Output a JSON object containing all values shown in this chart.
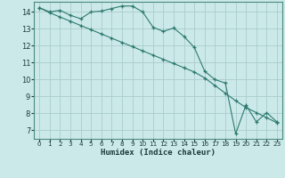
{
  "xlabel": "Humidex (Indice chaleur)",
  "background_color": "#cce9e9",
  "grid_color": "#aacccc",
  "line_color": "#2d7a6e",
  "xlim": [
    -0.5,
    23.5
  ],
  "ylim": [
    6.5,
    14.6
  ],
  "xticks": [
    0,
    1,
    2,
    3,
    4,
    5,
    6,
    7,
    8,
    9,
    10,
    11,
    12,
    13,
    14,
    15,
    16,
    17,
    18,
    19,
    20,
    21,
    22,
    23
  ],
  "yticks": [
    7,
    8,
    9,
    10,
    11,
    12,
    13,
    14
  ],
  "line1_x": [
    0,
    1,
    2,
    3,
    4,
    5,
    6,
    7,
    8,
    9,
    10,
    11,
    12,
    13,
    14,
    15,
    16,
    17,
    18,
    19,
    20,
    21,
    22,
    23
  ],
  "line1_y": [
    14.25,
    14.0,
    14.1,
    13.8,
    13.6,
    14.0,
    14.05,
    14.2,
    14.35,
    14.35,
    14.0,
    13.1,
    12.85,
    13.05,
    12.55,
    11.9,
    10.5,
    10.0,
    9.8,
    6.8,
    8.5,
    7.5,
    8.05,
    7.5
  ],
  "line2_x": [
    0,
    1,
    2,
    3,
    4,
    5,
    6,
    7,
    8,
    9,
    10,
    11,
    12,
    13,
    14,
    15,
    16,
    17,
    18,
    19,
    20,
    21,
    22,
    23
  ],
  "line2_y": [
    14.25,
    13.95,
    13.7,
    13.45,
    13.2,
    12.95,
    12.7,
    12.45,
    12.2,
    11.95,
    11.7,
    11.45,
    11.2,
    10.95,
    10.7,
    10.45,
    10.1,
    9.65,
    9.2,
    8.75,
    8.35,
    8.05,
    7.75,
    7.45
  ]
}
